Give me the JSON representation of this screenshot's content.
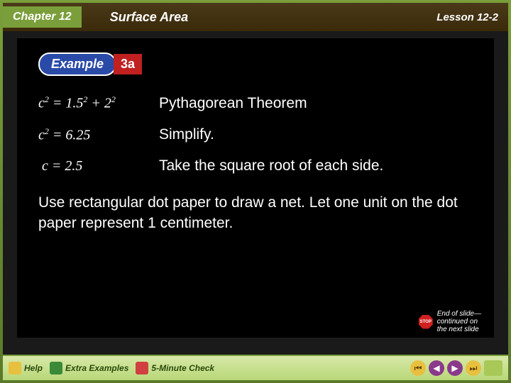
{
  "header": {
    "chapter": "Chapter 12",
    "unit_title": "Surface Area",
    "lesson": "Lesson 12-2"
  },
  "example_badge": {
    "label": "Example",
    "number": "3a"
  },
  "equations": [
    {
      "formula_html": "c² = 1.5² + 2²",
      "desc": "Pythagorean Theorem"
    },
    {
      "formula_html": "c² = 6.25",
      "desc": "Simplify."
    },
    {
      "formula_html": "c = 2.5",
      "desc": "Take the square root of each side."
    }
  ],
  "instruction": "Use rectangular dot paper to draw a net. Let one unit on the dot paper represent 1 centimeter.",
  "end_slide": {
    "stop": "STOP",
    "text_line1": "End of slide—",
    "text_line2": "continued on",
    "text_line3": "the next slide"
  },
  "footer": {
    "help": "Help",
    "extra": "Extra Examples",
    "check": "5-Minute Check"
  },
  "colors": {
    "accent_green": "#7a9e3a",
    "badge_blue": "#2a4aa8",
    "badge_red": "#c02020",
    "content_bg": "#000000"
  }
}
